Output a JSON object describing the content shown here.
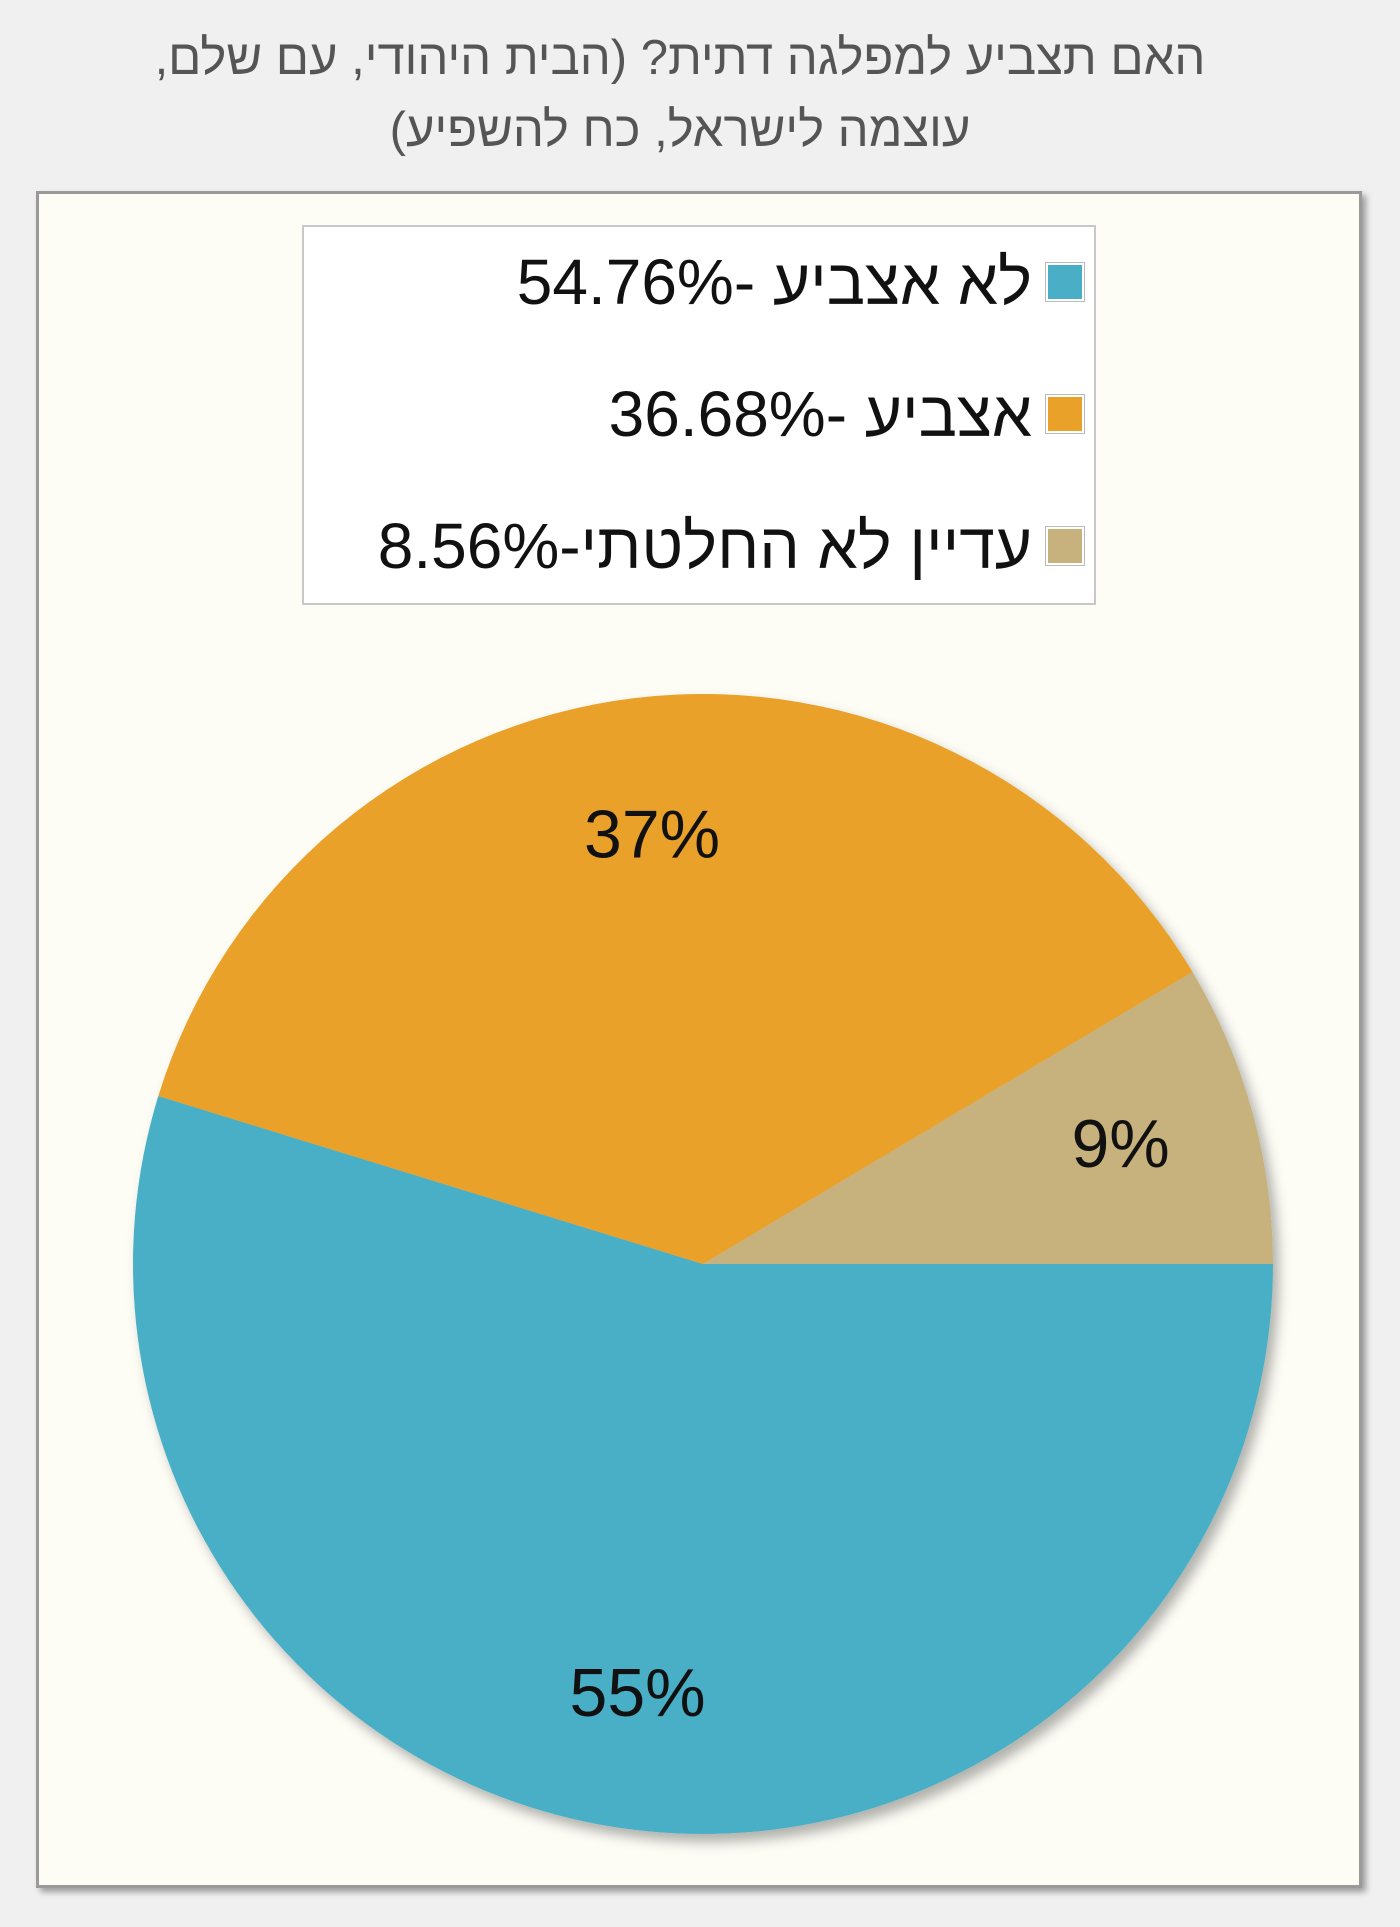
{
  "title_lines": [
    "האם תצביע למפלגה דתית? (הבית היהודי, עם שלם,",
    "עוצמה לישראל, כח להשפיע)"
  ],
  "chart_data": {
    "type": "pie",
    "title": "האם תצביע למפלגה דתית? (הבית היהודי, עם שלם, עוצמה לישראל, כח להשפיע)",
    "slices": [
      {
        "name": "לא אצביע",
        "value": 54.76,
        "legend": "לא אצביע -54.76%",
        "label": "55%",
        "color": "#4aafc6"
      },
      {
        "name": "אצביע",
        "value": 36.68,
        "legend": "אצביע -36.68%",
        "label": "37%",
        "color": "#eaa129"
      },
      {
        "name": "עדיין לא החלטתי",
        "value": 8.56,
        "legend": "עדיין לא החלטתי-8.56%",
        "label": "9%",
        "color": "#c7b17d"
      }
    ],
    "legend_position": "top"
  }
}
